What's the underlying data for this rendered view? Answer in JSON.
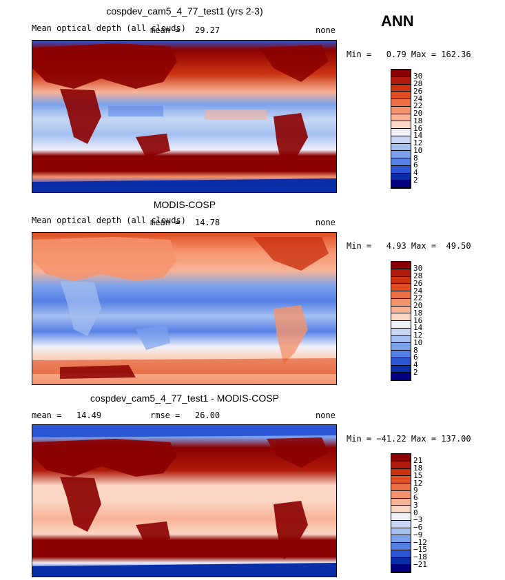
{
  "season": "ANN",
  "panels": [
    {
      "title": "cospdev_cam5_4_77_test1 (yrs 2-3)",
      "left_label": "Mean optical depth (all clouds)",
      "mid_label": "mean =   29.27",
      "right_label": "none",
      "minmax": "Min =   0.79 Max = 162.36",
      "ticks": [
        "30",
        "28",
        "26",
        "24",
        "22",
        "20",
        "18",
        "16",
        "14",
        "12",
        "10",
        "8",
        "6",
        "4",
        "2"
      ],
      "colors": [
        "#8b0000",
        "#b01a0c",
        "#cc3311",
        "#e04d22",
        "#ed6f45",
        "#f4936d",
        "#f8b396",
        "#fbd6c4",
        "#eef0f8",
        "#c7d7f4",
        "#a4bff0",
        "#7ca2ec",
        "#5580e6",
        "#2c55d6",
        "#0a2da8",
        "#000080"
      ]
    },
    {
      "title": "MODIS-COSP",
      "left_label": "Mean optical depth (all clouds)",
      "mid_label": "mean =   14.78",
      "right_label": "none",
      "minmax": "Min =   4.93 Max =  49.50",
      "ticks": [
        "30",
        "28",
        "26",
        "24",
        "22",
        "20",
        "18",
        "16",
        "14",
        "12",
        "10",
        "8",
        "6",
        "4",
        "2"
      ],
      "colors": [
        "#8b0000",
        "#b01a0c",
        "#cc3311",
        "#e04d22",
        "#ed6f45",
        "#f4936d",
        "#f8b396",
        "#fbd6c4",
        "#eef0f8",
        "#c7d7f4",
        "#a4bff0",
        "#7ca2ec",
        "#5580e6",
        "#2c55d6",
        "#0a2da8",
        "#000080"
      ]
    },
    {
      "title": "cospdev_cam5_4_77_test1 - MODIS-COSP",
      "left_label": "mean =   14.49",
      "mid_label": "rmse =   26.00",
      "right_label": "none",
      "minmax": "Min = −41.22 Max = 137.00",
      "ticks": [
        "21",
        "18",
        "15",
        "12",
        "9",
        "6",
        "3",
        "0",
        "−3",
        "−6",
        "−9",
        "−12",
        "−15",
        "−18",
        "−21"
      ],
      "colors": [
        "#8b0000",
        "#b01a0c",
        "#cc3311",
        "#e04d22",
        "#ed6f45",
        "#f4936d",
        "#f8b396",
        "#fbd6c4",
        "#eef0f8",
        "#c7d7f4",
        "#a4bff0",
        "#7ca2ec",
        "#5580e6",
        "#2c55d6",
        "#0a2da8",
        "#000080"
      ]
    }
  ]
}
